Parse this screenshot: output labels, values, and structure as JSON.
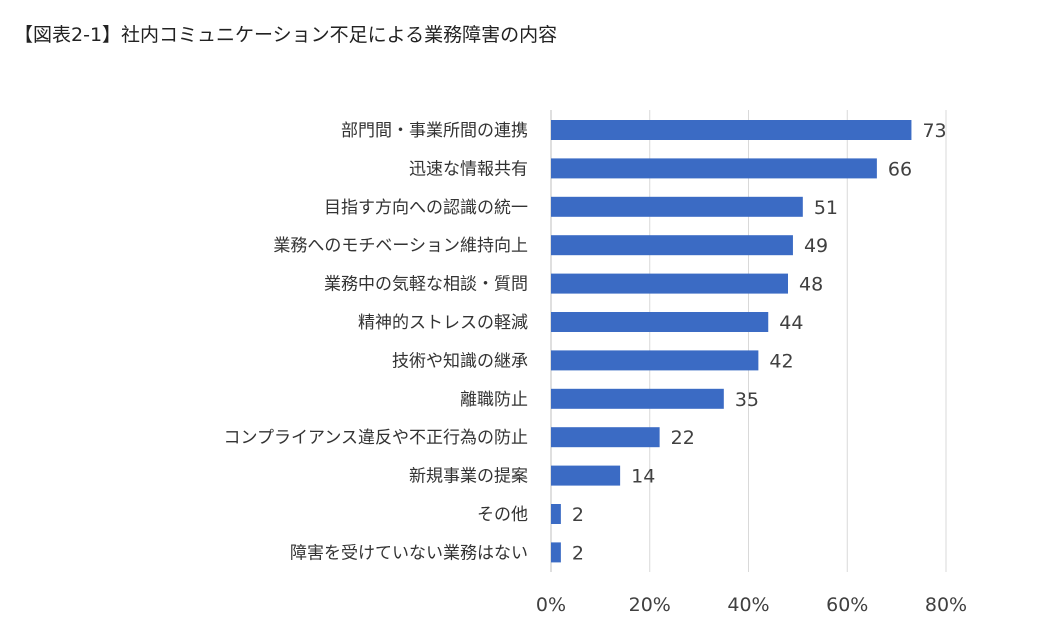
{
  "title": "【図表2-1】社内コミュニケーション不足による業務障害の内容",
  "chart_data": {
    "type": "bar",
    "orientation": "horizontal",
    "title": "【図表2-1】社内コミュニケーション不足による業務障害の内容",
    "xlabel": "",
    "ylabel": "",
    "categories": [
      "部門間・事業所間の連携",
      "迅速な情報共有",
      "目指す方向への認識の統一",
      "業務へのモチベーション維持向上",
      "業務中の気軽な相談・質問",
      "精神的ストレスの軽減",
      "技術や知識の継承",
      "離職防止",
      "コンプライアンス違反や不正行為の防止",
      "新規事業の提案",
      "その他",
      "障害を受けていない業務はない"
    ],
    "values": [
      73,
      66,
      51,
      49,
      48,
      44,
      42,
      35,
      22,
      14,
      2,
      2
    ],
    "value_labels": [
      "73",
      "66",
      "51",
      "49",
      "48",
      "44",
      "42",
      "35",
      "22",
      "14",
      "2",
      "2"
    ],
    "xlim": [
      0,
      80
    ],
    "xticks": [
      0,
      20,
      40,
      60,
      80
    ],
    "xtick_labels": [
      "0%",
      "20%",
      "40%",
      "60%",
      "80%"
    ],
    "grid": true,
    "legend": "none",
    "colors": {
      "bar": "#3b6bc4",
      "grid": "#d9d9d9",
      "axis": "#bfbfbf"
    }
  }
}
